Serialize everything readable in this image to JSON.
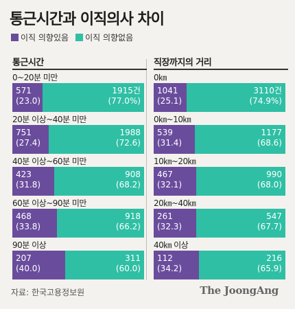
{
  "title": "통근시간과 이직의사 차이",
  "legend": [
    {
      "label": "이직 의향있음",
      "color": "#6a4c9c"
    },
    {
      "label": "이직 의향없음",
      "color": "#2fbfa4"
    }
  ],
  "chart_data": [
    {
      "type": "bar",
      "title": "통근시간",
      "categories": [
        "0~20분 미만",
        "20분 이상~40분 미만",
        "40분 이상~60분 미만",
        "60분 이상~90분 미만",
        "90분 이상"
      ],
      "series": [
        {
          "name": "이직 의향있음",
          "values": [
            "571",
            "751",
            "423",
            "468",
            "207"
          ],
          "pct": [
            "(23.0)",
            "(27.4)",
            "(31.8)",
            "(33.8)",
            "(40.0)"
          ],
          "share": [
            23.0,
            27.4,
            31.8,
            33.8,
            40.0
          ]
        },
        {
          "name": "이직 의향없음",
          "values": [
            "1915건",
            "1988",
            "908",
            "918",
            "311"
          ],
          "pct": [
            "(77.0%)",
            "(72.6)",
            "(68.2)",
            "(66.2)",
            "(60.0)"
          ],
          "share": [
            77.0,
            72.6,
            68.2,
            66.2,
            60.0
          ]
        }
      ]
    },
    {
      "type": "bar",
      "title": "직장까지의 거리",
      "categories": [
        "0㎞",
        "0㎞~10㎞",
        "10㎞~20㎞",
        "20㎞~40㎞",
        "40㎞ 이상"
      ],
      "series": [
        {
          "name": "이직 의향있음",
          "values": [
            "1041",
            "539",
            "467",
            "261",
            "112"
          ],
          "pct": [
            "(25.1)",
            "(31.4)",
            "(32.1)",
            "(32.3)",
            "(34.2)"
          ],
          "share": [
            25.1,
            31.4,
            32.1,
            32.3,
            34.2
          ]
        },
        {
          "name": "이직 의향없음",
          "values": [
            "3110건",
            "1177",
            "990",
            "547",
            "216"
          ],
          "pct": [
            "(74.9%)",
            "(68.6)",
            "(68.0)",
            "(67.7)",
            "(65.9)"
          ],
          "share": [
            74.9,
            68.6,
            68.0,
            67.7,
            65.9
          ]
        }
      ]
    }
  ],
  "source": "자료: 한국고용정보원",
  "brand": "The JoongAng"
}
